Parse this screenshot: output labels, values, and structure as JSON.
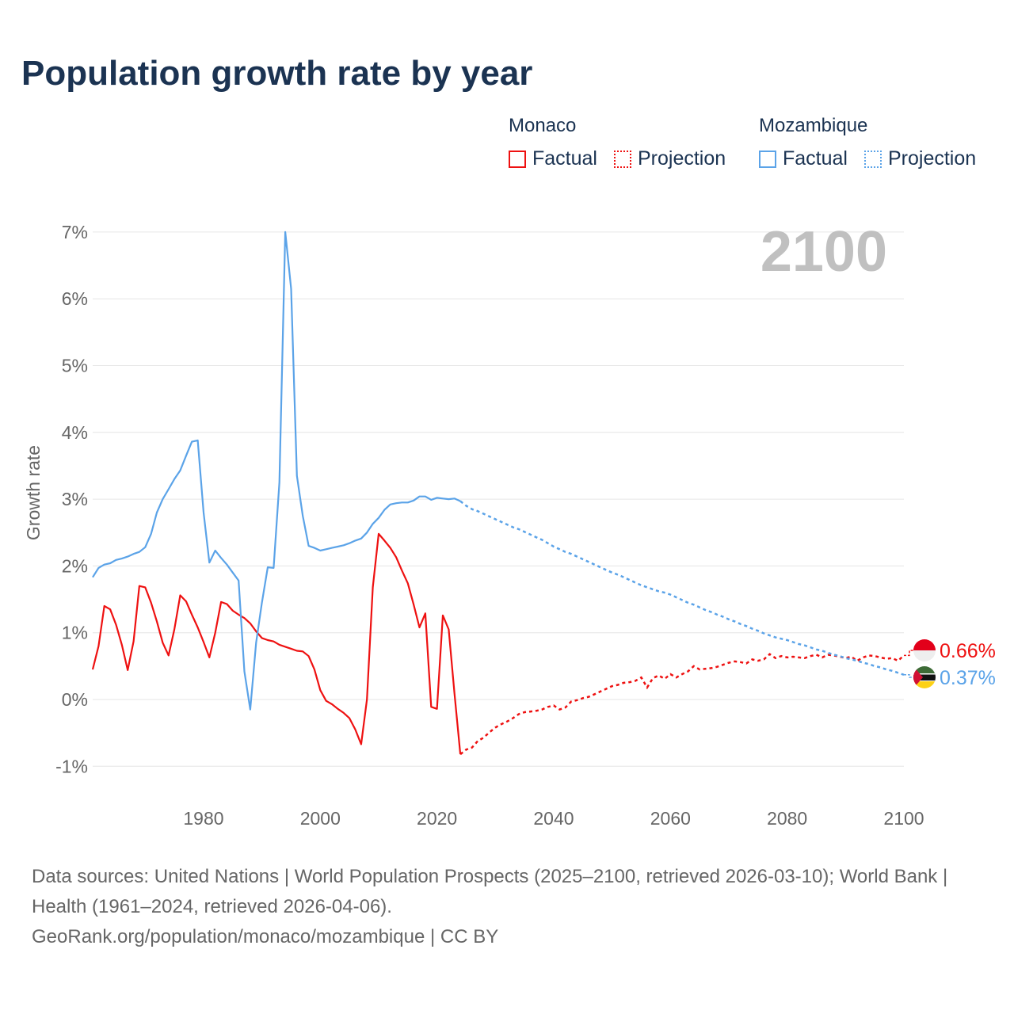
{
  "chart_data": {
    "type": "line",
    "title": "Population growth rate by year",
    "ylabel": "Growth rate",
    "xlabel": "",
    "xlim": [
      1961,
      2100
    ],
    "ylim": [
      -1,
      7
    ],
    "x_ticks": [
      "1980",
      "2000",
      "2020",
      "2040",
      "2060",
      "2080",
      "2100"
    ],
    "y_ticks": [
      "-1%",
      "0%",
      "1%",
      "2%",
      "3%",
      "4%",
      "5%",
      "6%",
      "7%"
    ],
    "grid": true,
    "year_label": "2100",
    "legend": {
      "placement": "top-right",
      "groups": [
        {
          "name": "Monaco",
          "factual": "Factual",
          "projection": "Projection"
        },
        {
          "name": "Mozambique",
          "factual": "Factual",
          "projection": "Projection"
        }
      ]
    },
    "series": [
      {
        "name": "Monaco",
        "color": "#ee1111",
        "end_label": "0.66%",
        "factual_start": 1961,
        "factual": [
          0.45,
          0.8,
          1.4,
          1.35,
          1.12,
          0.82,
          0.44,
          0.87,
          1.7,
          1.68,
          1.45,
          1.17,
          0.85,
          0.66,
          1.05,
          1.56,
          1.47,
          1.27,
          1.08,
          0.86,
          0.63,
          1.0,
          1.46,
          1.43,
          1.33,
          1.27,
          1.22,
          1.14,
          1.02,
          0.92,
          0.89,
          0.87,
          0.82,
          0.79,
          0.76,
          0.73,
          0.72,
          0.65,
          0.45,
          0.14,
          -0.02,
          -0.07,
          -0.14,
          -0.2,
          -0.28,
          -0.45,
          -0.67,
          0.0,
          1.68,
          2.48,
          2.38,
          2.27,
          2.13,
          1.93,
          1.74,
          1.42,
          1.08,
          1.29,
          -0.11,
          -0.14,
          1.26,
          1.05,
          0.09,
          -0.82
        ],
        "projection_start": 2025,
        "projection": [
          -0.75,
          -0.72,
          -0.62,
          -0.57,
          -0.49,
          -0.42,
          -0.37,
          -0.33,
          -0.28,
          -0.22,
          -0.19,
          -0.18,
          -0.17,
          -0.15,
          -0.11,
          -0.09,
          -0.15,
          -0.12,
          -0.03,
          -0.01,
          0.02,
          0.04,
          0.08,
          0.12,
          0.16,
          0.2,
          0.22,
          0.25,
          0.26,
          0.28,
          0.33,
          0.18,
          0.32,
          0.36,
          0.31,
          0.38,
          0.33,
          0.38,
          0.42,
          0.5,
          0.45,
          0.46,
          0.47,
          0.49,
          0.52,
          0.55,
          0.57,
          0.56,
          0.54,
          0.6,
          0.58,
          0.6,
          0.68,
          0.62,
          0.65,
          0.63,
          0.64,
          0.63,
          0.62,
          0.65,
          0.67,
          0.63,
          0.67,
          0.66,
          0.64,
          0.62,
          0.64,
          0.58,
          0.63,
          0.66,
          0.65,
          0.63,
          0.61,
          0.62,
          0.58,
          0.66
        ]
      },
      {
        "name": "Mozambique",
        "color": "#5ba3e8",
        "end_label": "0.37%",
        "factual_start": 1961,
        "factual": [
          1.83,
          1.97,
          2.02,
          2.04,
          2.09,
          2.11,
          2.14,
          2.18,
          2.21,
          2.28,
          2.48,
          2.8,
          3.0,
          3.15,
          3.3,
          3.43,
          3.65,
          3.86,
          3.88,
          2.8,
          2.05,
          2.23,
          2.12,
          2.02,
          1.9,
          1.78,
          0.42,
          -0.15,
          0.85,
          1.45,
          1.98,
          1.97,
          3.25,
          7.0,
          6.15,
          3.35,
          2.75,
          2.3,
          2.27,
          2.23,
          2.25,
          2.27,
          2.29,
          2.31,
          2.34,
          2.38,
          2.41,
          2.5,
          2.63,
          2.72,
          2.84,
          2.92,
          2.94,
          2.95,
          2.95,
          2.98,
          3.04,
          3.04,
          2.99,
          3.02,
          3.01,
          3.0,
          3.01,
          2.97
        ],
        "projection_start": 2025,
        "projection": [
          2.9,
          2.85,
          2.82,
          2.78,
          2.74,
          2.7,
          2.66,
          2.62,
          2.58,
          2.55,
          2.51,
          2.47,
          2.43,
          2.39,
          2.34,
          2.29,
          2.25,
          2.21,
          2.18,
          2.14,
          2.1,
          2.06,
          2.02,
          1.98,
          1.94,
          1.9,
          1.87,
          1.83,
          1.79,
          1.75,
          1.71,
          1.68,
          1.65,
          1.62,
          1.6,
          1.57,
          1.53,
          1.49,
          1.45,
          1.42,
          1.38,
          1.34,
          1.31,
          1.27,
          1.24,
          1.2,
          1.17,
          1.13,
          1.1,
          1.06,
          1.03,
          0.99,
          0.96,
          0.93,
          0.91,
          0.89,
          0.86,
          0.83,
          0.81,
          0.78,
          0.75,
          0.73,
          0.7,
          0.67,
          0.65,
          0.62,
          0.6,
          0.58,
          0.55,
          0.53,
          0.5,
          0.48,
          0.45,
          0.43,
          0.4,
          0.37
        ]
      }
    ]
  },
  "footer": {
    "sources": "Data sources: United Nations | World Population Prospects (2025–2100, retrieved 2026-03-10); World Bank | Health (1961–2024, retrieved 2026-04-06).",
    "link": "GeoRank.org/population/monaco/mozambique | CC BY"
  }
}
